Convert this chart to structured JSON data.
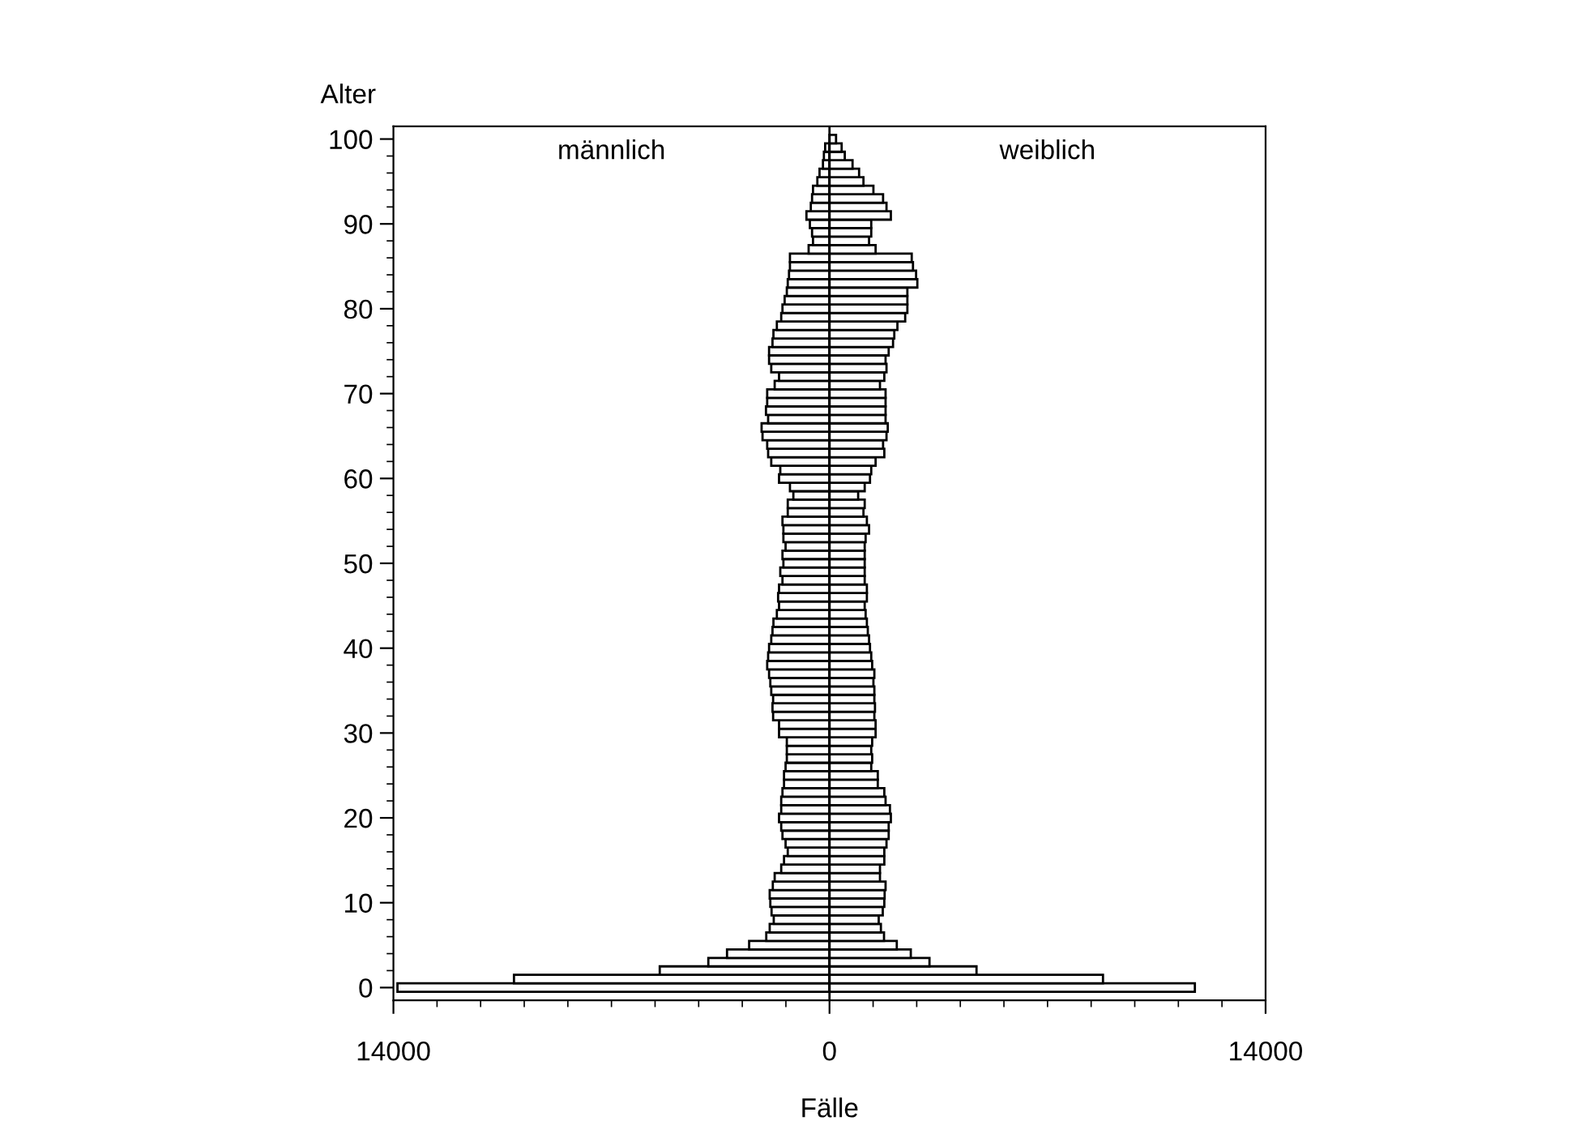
{
  "chart_data": {
    "type": "bar",
    "orientation": "horizontal",
    "xlabel": "Fälle",
    "ylabel": "Alter",
    "x": [
      0,
      1,
      2,
      3,
      4,
      5,
      6,
      7,
      8,
      9,
      10,
      11,
      12,
      13,
      14,
      15,
      16,
      17,
      18,
      19,
      20,
      21,
      22,
      23,
      24,
      25,
      26,
      27,
      28,
      29,
      30,
      31,
      32,
      33,
      34,
      35,
      36,
      37,
      38,
      39,
      40,
      41,
      42,
      43,
      44,
      45,
      46,
      47,
      48,
      49,
      50,
      51,
      52,
      53,
      54,
      55,
      56,
      57,
      58,
      59,
      60,
      61,
      62,
      63,
      64,
      65,
      66,
      67,
      68,
      69,
      70,
      71,
      72,
      73,
      74,
      75,
      76,
      77,
      78,
      79,
      80,
      81,
      82,
      83,
      84,
      85,
      86,
      87,
      88,
      89,
      90,
      91,
      92,
      93,
      94,
      95,
      96,
      97,
      98,
      99,
      100
    ],
    "series": [
      {
        "color": "#ffffff",
        "values": [
          -13870,
          -10130,
          -5450,
          -3890,
          -3290,
          -2580,
          -2030,
          -1920,
          -1790,
          -1860,
          -1900,
          -1920,
          -1820,
          -1760,
          -1550,
          -1460,
          -1340,
          -1410,
          -1510,
          -1550,
          -1620,
          -1550,
          -1550,
          -1510,
          -1460,
          -1460,
          -1410,
          -1370,
          -1370,
          -1370,
          -1620,
          -1620,
          -1810,
          -1830,
          -1810,
          -1870,
          -1900,
          -1940,
          -2000,
          -1970,
          -1940,
          -1870,
          -1830,
          -1800,
          -1690,
          -1620,
          -1650,
          -1620,
          -1510,
          -1580,
          -1480,
          -1510,
          -1410,
          -1480,
          -1480,
          -1510,
          -1340,
          -1340,
          -1160,
          -1270,
          -1620,
          -1580,
          -1870,
          -1970,
          -2000,
          -2150,
          -2180,
          -1970,
          -2040,
          -2000,
          -2000,
          -1760,
          -1620,
          -1870,
          -1940,
          -1940,
          -1830,
          -1800,
          -1690,
          -1550,
          -1510,
          -1440,
          -1370,
          -1340,
          -1300,
          -1270,
          -1270,
          -670,
          -530,
          -560,
          -630,
          -740,
          -600,
          -560,
          -530,
          -390,
          -320,
          -210,
          -180,
          -140,
          null
        ]
      },
      {
        "color": "#ffffff",
        "values": [
          11730,
          8780,
          4720,
          3210,
          2610,
          2160,
          1750,
          1650,
          1580,
          1710,
          1760,
          1770,
          1800,
          1620,
          1620,
          1760,
          1760,
          1830,
          1900,
          1900,
          1970,
          1940,
          1800,
          1760,
          1550,
          1550,
          1340,
          1370,
          1340,
          1370,
          1480,
          1480,
          1440,
          1460,
          1440,
          1440,
          1410,
          1440,
          1370,
          1340,
          1300,
          1270,
          1230,
          1200,
          1160,
          1130,
          1200,
          1200,
          1130,
          1130,
          1130,
          1130,
          1130,
          1160,
          1270,
          1200,
          1090,
          1130,
          920,
          1130,
          1300,
          1340,
          1480,
          1760,
          1720,
          1830,
          1870,
          1800,
          1800,
          1800,
          1800,
          1620,
          1760,
          1830,
          1800,
          1900,
          2040,
          2080,
          2180,
          2430,
          2500,
          2500,
          2500,
          2820,
          2780,
          2680,
          2640,
          1480,
          1270,
          1340,
          1340,
          1970,
          1830,
          1720,
          1410,
          1090,
          950,
          740,
          490,
          390,
          210
        ]
      }
    ],
    "xlim": [
      -14000,
      14000
    ],
    "xticks": [
      {
        "value": -14000,
        "label": "14000"
      },
      0,
      14000
    ],
    "ylim": [
      -1.5,
      101.5
    ],
    "yticks": [
      0,
      10,
      20,
      30,
      40,
      50,
      60,
      70,
      80,
      90,
      100
    ],
    "ref_lines": [
      {
        "axis": "x",
        "value": 0,
        "color": "#000000"
      }
    ],
    "annotations": [
      "männlich",
      "weiblich"
    ],
    "stacked": true,
    "grid": false,
    "legend": false
  }
}
